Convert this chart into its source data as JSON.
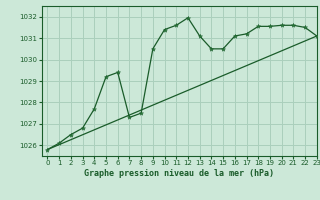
{
  "title": "Graphe pression niveau de la mer (hPa)",
  "bg_color": "#cce8d8",
  "grid_color": "#aacfbc",
  "line_color": "#1a5c2a",
  "marker_color": "#2a7a3a",
  "xlim": [
    -0.5,
    23
  ],
  "ylim": [
    1025.5,
    1032.5
  ],
  "yticks": [
    1026,
    1027,
    1028,
    1029,
    1030,
    1031,
    1032
  ],
  "xticks": [
    0,
    1,
    2,
    3,
    4,
    5,
    6,
    7,
    8,
    9,
    10,
    11,
    12,
    13,
    14,
    15,
    16,
    17,
    18,
    19,
    20,
    21,
    22,
    23
  ],
  "series1_x": [
    0,
    1,
    2,
    3,
    4,
    5,
    6,
    7,
    8,
    9,
    10,
    11,
    12,
    13,
    14,
    15,
    16,
    17,
    18,
    19,
    20,
    21,
    22,
    23
  ],
  "series1_y": [
    1025.8,
    1026.1,
    1026.5,
    1026.8,
    1027.7,
    1029.2,
    1029.4,
    1027.3,
    1027.5,
    1030.5,
    1031.4,
    1031.6,
    1031.95,
    1031.1,
    1030.5,
    1030.5,
    1031.1,
    1031.2,
    1031.55,
    1031.55,
    1031.6,
    1031.6,
    1031.5,
    1031.1
  ],
  "series2_x": [
    0,
    23
  ],
  "series2_y": [
    1025.8,
    1031.1
  ]
}
